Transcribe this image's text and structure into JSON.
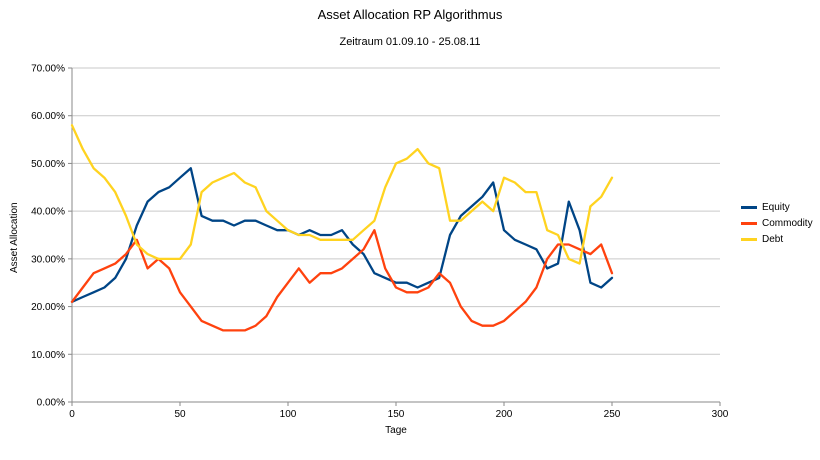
{
  "chart_data": {
    "type": "line",
    "title": "Asset Allocation RP Algorithmus",
    "subtitle": "Zeitraum 01.09.10 - 25.08.11",
    "xlabel": "Tage",
    "ylabel": "Asset Allocation",
    "xlim": [
      0,
      300
    ],
    "ylim": [
      0,
      70
    ],
    "x_ticks": [
      0,
      50,
      100,
      150,
      200,
      250,
      300
    ],
    "y_ticks": [
      "0.00%",
      "10.00%",
      "20.00%",
      "30.00%",
      "40.00%",
      "50.00%",
      "60.00%",
      "70.00%"
    ],
    "grid": "horizontal",
    "legend_position": "right",
    "unit": "percent",
    "x": [
      0,
      5,
      10,
      15,
      20,
      25,
      30,
      35,
      40,
      45,
      50,
      55,
      60,
      65,
      70,
      75,
      80,
      85,
      90,
      95,
      100,
      105,
      110,
      115,
      120,
      125,
      130,
      135,
      140,
      145,
      150,
      155,
      160,
      165,
      170,
      175,
      180,
      185,
      190,
      195,
      200,
      205,
      210,
      215,
      220,
      225,
      230,
      235,
      240,
      245,
      250
    ],
    "series": [
      {
        "name": "Equity",
        "color": "#004586",
        "values": [
          21,
          22,
          23,
          24,
          26,
          30,
          37,
          42,
          44,
          45,
          47,
          49,
          39,
          38,
          38,
          37,
          38,
          38,
          37,
          36,
          36,
          35,
          36,
          35,
          35,
          36,
          33,
          31,
          27,
          26,
          25,
          25,
          24,
          25,
          26,
          35,
          39,
          41,
          43,
          46,
          36,
          34,
          33,
          32,
          28,
          29,
          42,
          36,
          25,
          24,
          26
        ]
      },
      {
        "name": "Commodity",
        "color": "#FF420E",
        "values": [
          21,
          24,
          27,
          28,
          29,
          31,
          34,
          28,
          30,
          28,
          23,
          20,
          17,
          16,
          15,
          15,
          15,
          16,
          18,
          22,
          25,
          28,
          25,
          27,
          27,
          28,
          30,
          32,
          36,
          28,
          24,
          23,
          23,
          24,
          27,
          25,
          20,
          17,
          16,
          16,
          17,
          19,
          21,
          24,
          30,
          33,
          33,
          32,
          31,
          33,
          27
        ]
      },
      {
        "name": "Debt",
        "color": "#FFD320",
        "values": [
          58,
          53,
          49,
          47,
          44,
          39,
          33,
          31,
          30,
          30,
          30,
          33,
          44,
          46,
          47,
          48,
          46,
          45,
          40,
          38,
          36,
          35,
          35,
          34,
          34,
          34,
          34,
          36,
          38,
          45,
          50,
          51,
          53,
          50,
          49,
          38,
          38,
          40,
          42,
          40,
          47,
          46,
          44,
          44,
          36,
          35,
          30,
          29,
          41,
          43,
          47
        ]
      }
    ]
  }
}
